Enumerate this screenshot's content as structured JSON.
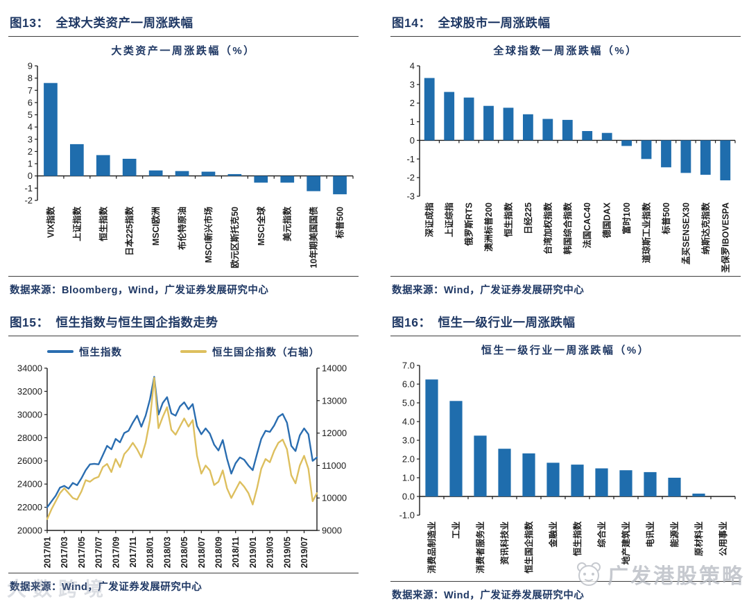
{
  "figures": {
    "fig13": {
      "caption_prefix": "图13：",
      "caption": "全球大类资产一周涨跌幅",
      "source": "数据来源：Bloomberg，Wind，广发证券发展研究中心"
    },
    "fig14": {
      "caption_prefix": "图14：",
      "caption": "全球股市一周涨跌幅",
      "source": "数据来源：Wind，广发证券发展研究中心"
    },
    "fig15": {
      "caption_prefix": "图15：",
      "caption": "恒生指数与恒生国企指数走势",
      "source": "数据来源：Wind，广发证券发展研究中心"
    },
    "fig16": {
      "caption_prefix": "图16：",
      "caption": "恒生一级行业一周涨跌幅",
      "source": "数据来源：Wind，广发证券发展研究中心"
    }
  },
  "watermarks": {
    "bottom_left": "大数跨境",
    "bottom_right": "广发港股策略"
  },
  "colors": {
    "navy_text": "#1f3864",
    "bar_blue": "#1f6dad",
    "line_blue": "#2a6db0",
    "line_gold": "#ddbf5e"
  },
  "chart_data": [
    {
      "id": "fig13",
      "type": "bar",
      "title": "大类资产一周涨跌幅（%）",
      "categories": [
        "VIX指数",
        "上证指数",
        "恒生指数",
        "日本225指数",
        "MSCI欧洲",
        "布伦特原油",
        "MSCI新兴市场",
        "欧元区斯托克50",
        "MSCI全球",
        "美元指数",
        "10年期美国国债",
        "标普500"
      ],
      "values": [
        7.6,
        2.6,
        1.7,
        1.4,
        0.45,
        0.4,
        0.35,
        0.15,
        -0.55,
        -0.55,
        -1.25,
        -1.5
      ],
      "ylim": [
        -2,
        9
      ],
      "ytick_step": 1,
      "ytick_decimals": 0,
      "bar_color": "#1f6dad",
      "layout": {
        "label_area": 106,
        "grid": false,
        "x_labels_rotated_90": true
      }
    },
    {
      "id": "fig14",
      "type": "bar",
      "title": "全球指数一周涨跌幅（%）",
      "categories": [
        "深证成指",
        "上证综指",
        "俄罗斯RTS",
        "澳洲标普200",
        "恒生指数",
        "日经225",
        "台湾加权指数",
        "韩国综合指数",
        "法国CAC40",
        "德国DAX",
        "富时100",
        "道琼斯工业指数",
        "标普500",
        "孟买SENSEX30",
        "纳斯达克指数",
        "圣保罗IBOVESPA"
      ],
      "values": [
        3.35,
        2.6,
        2.3,
        1.85,
        1.75,
        1.4,
        1.15,
        1.1,
        0.5,
        0.4,
        -0.3,
        -1.0,
        -1.45,
        -1.75,
        -1.85,
        -2.15
      ],
      "ylim": [
        -3,
        4
      ],
      "ytick_step": 1,
      "ytick_decimals": 0,
      "bar_color": "#1f6dad",
      "layout": {
        "label_area": 112,
        "grid": false,
        "x_labels_rotated_90": true
      }
    },
    {
      "id": "fig15",
      "type": "line",
      "title": "",
      "x_labels": [
        "2017/01",
        "2017/03",
        "2017/05",
        "2017/07",
        "2017/09",
        "2017/11",
        "2018/01",
        "2018/03",
        "2018/05",
        "2018/07",
        "2018/09",
        "2018/11",
        "2019/01",
        "2019/03",
        "2019/05",
        "2019/07"
      ],
      "left_ylim": [
        20000,
        34000
      ],
      "left_step": 2000,
      "right_ylim": [
        9000,
        14000
      ],
      "right_step": 1000,
      "series": [
        {
          "name": "恒生指数",
          "axis": "left",
          "color": "#2a6db0",
          "values": [
            22000,
            22500,
            23000,
            23700,
            23850,
            23600,
            24100,
            23900,
            24500,
            25200,
            25700,
            25750,
            25700,
            26500,
            27300,
            27000,
            27900,
            27600,
            28400,
            28600,
            29300,
            29900,
            28950,
            29900,
            31300,
            33250,
            30000,
            31000,
            31500,
            30100,
            29900,
            30700,
            31050,
            30450,
            30900,
            29000,
            28300,
            28800,
            28350,
            27400,
            26900,
            27800,
            26200,
            24900,
            25800,
            26300,
            26100,
            25600,
            25200,
            26600,
            27900,
            28600,
            28500,
            29050,
            29800,
            30050,
            29300,
            27300,
            26850,
            28200,
            28800,
            28300,
            26000,
            26300
          ]
        },
        {
          "name": "恒生国企指数（右轴）",
          "axis": "right",
          "color": "#ddbf5e",
          "values": [
            9350,
            9650,
            9900,
            10150,
            10300,
            10150,
            10000,
            9950,
            10200,
            10550,
            10500,
            10600,
            10650,
            10950,
            11050,
            10800,
            11200,
            10950,
            11350,
            11500,
            11700,
            11500,
            11250,
            11700,
            12400,
            13700,
            12150,
            12500,
            12800,
            12100,
            11950,
            12200,
            12450,
            12200,
            12400,
            11300,
            10750,
            11000,
            10850,
            10400,
            10500,
            10850,
            10300,
            10000,
            10250,
            10500,
            10350,
            10150,
            9800,
            10300,
            10900,
            11200,
            11100,
            11450,
            11700,
            11800,
            11500,
            10700,
            10450,
            11000,
            11300,
            10900,
            9900,
            10150
          ]
        }
      ],
      "layout": {
        "label_area": 58,
        "grid": false,
        "legend_position": "top"
      }
    },
    {
      "id": "fig16",
      "type": "bar",
      "title": "恒生一级行业一周涨跌幅（%）",
      "categories": [
        "消费品制造业",
        "工业",
        "消费者服务业",
        "资讯科技业",
        "恒生国企指数",
        "金融业",
        "恒生指数",
        "综合业",
        "地产建筑业",
        "电讯业",
        "能源业",
        "原材料业",
        "公用事业"
      ],
      "values": [
        6.25,
        5.1,
        3.25,
        2.55,
        2.3,
        1.8,
        1.7,
        1.5,
        1.4,
        1.3,
        1.0,
        0.15,
        0.0
      ],
      "ylim": [
        -1,
        7
      ],
      "ytick_step": 1,
      "ytick_decimals": 1,
      "bar_color": "#1f6dad",
      "layout": {
        "label_area": 92,
        "grid": false,
        "x_labels_rotated_90": true
      }
    }
  ]
}
